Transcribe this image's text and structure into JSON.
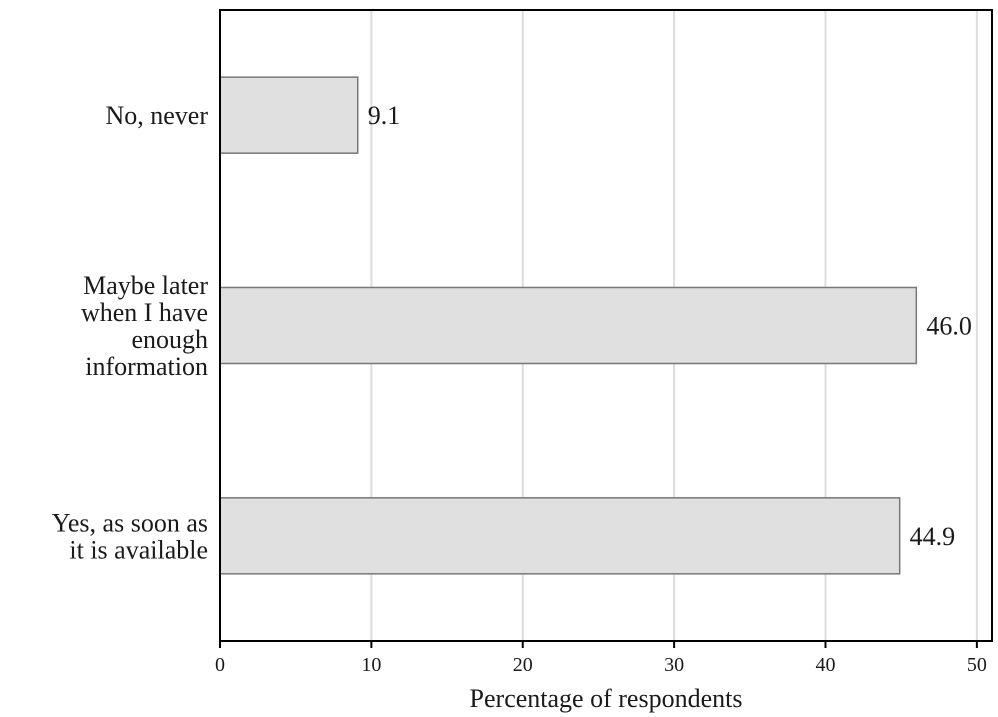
{
  "chart_data": {
    "type": "bar",
    "orientation": "horizontal",
    "categories": [
      [
        "No, never"
      ],
      [
        "Maybe later",
        "when I have",
        "enough",
        "information"
      ],
      [
        "Yes, as soon as",
        "it is available"
      ]
    ],
    "values": [
      9.1,
      46.0,
      44.9
    ],
    "data_labels": [
      "9.1",
      "46.0",
      "44.9"
    ],
    "xlabel": "Percentage of respondents",
    "xlim": [
      0,
      51
    ],
    "xticks": [
      0,
      10,
      20,
      30,
      40,
      50
    ],
    "xtick_labels": [
      "0",
      "10",
      "20",
      "30",
      "40",
      "50"
    ],
    "grid": "vertical",
    "colors": {
      "bar_fill": "#e0e0e0",
      "bar_stroke": "#777777",
      "grid": "#dddddd",
      "axis": "#000000"
    }
  }
}
